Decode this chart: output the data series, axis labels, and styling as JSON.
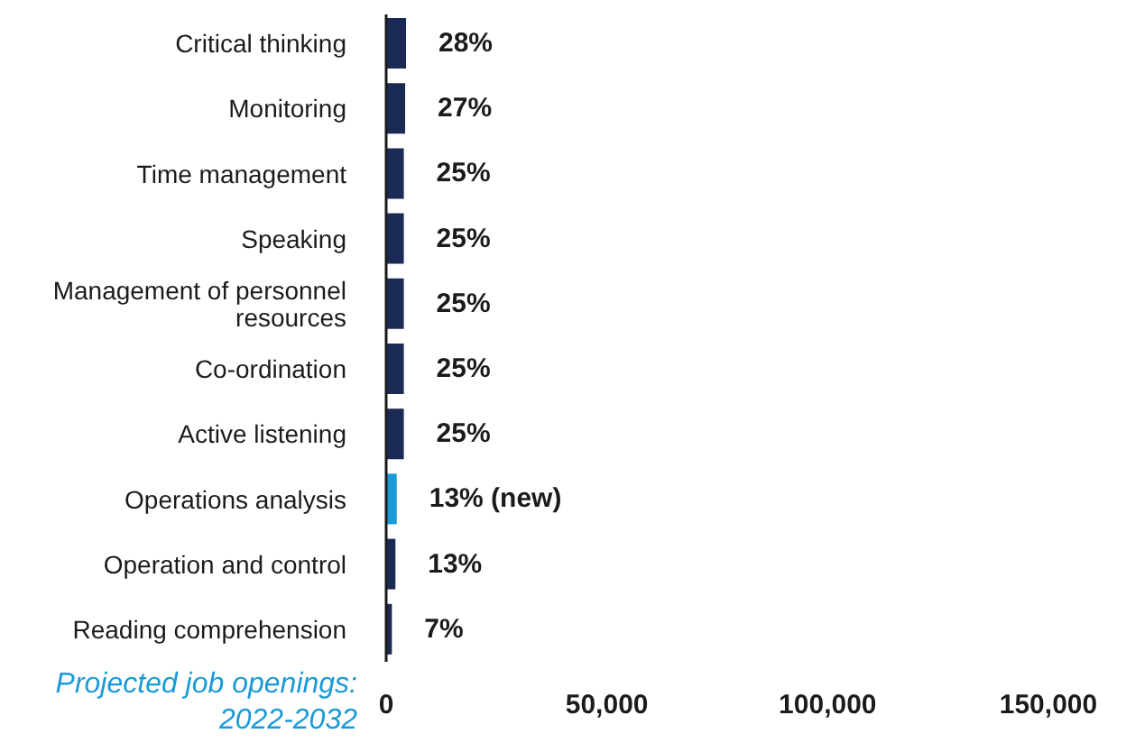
{
  "chart_data": {
    "type": "bar",
    "orientation": "horizontal",
    "xlabel": "Projected job openings: 2022-2032",
    "categories": [
      "Critical thinking",
      "Monitoring",
      "Time management",
      "Speaking",
      "Management of personnel resources",
      "Co-ordination",
      "Active listening",
      "Operations analysis",
      "Operation and control",
      "Reading comprehension"
    ],
    "values": [
      4500,
      4300,
      4000,
      4000,
      4000,
      4000,
      4000,
      2400,
      2100,
      1300
    ],
    "colors": [
      "#1b2a55",
      "#1b2a55",
      "#1b2a55",
      "#1b2a55",
      "#1b2a55",
      "#1b2a55",
      "#1b2a55",
      "#1a9ad6",
      "#1b2a55",
      "#1b2a55"
    ],
    "annotations": [
      "28%",
      "27%",
      "25%",
      "25%",
      "25%",
      "25%",
      "25%",
      "13% (new)",
      "13%",
      "7%"
    ],
    "xlim": [
      0,
      150000
    ],
    "xticks": [
      0,
      {
        "value": 50000,
        "label": "50,000"
      },
      {
        "value": 100000,
        "label": "100,000"
      },
      {
        "value": 150000,
        "label": "150,000"
      }
    ],
    "grid": false,
    "legend": false
  }
}
